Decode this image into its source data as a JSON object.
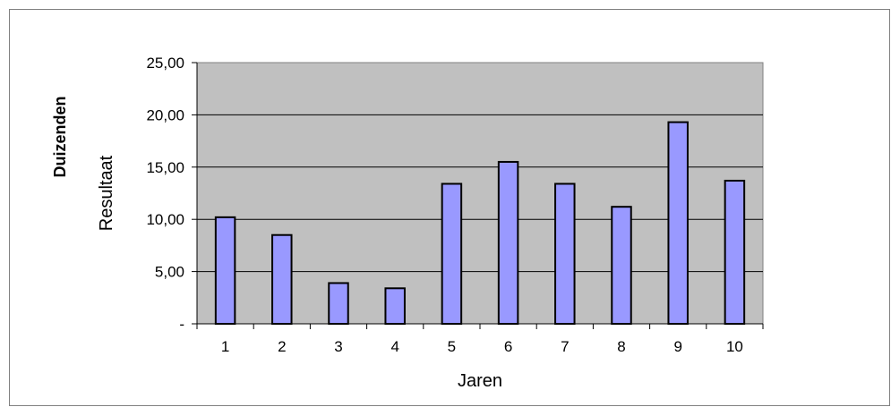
{
  "chart_data": {
    "type": "bar",
    "title": "",
    "xlabel": "Jaren",
    "ylabel": "Resultaat",
    "unit_label": "Duizenden",
    "categories": [
      "1",
      "2",
      "3",
      "4",
      "5",
      "6",
      "7",
      "8",
      "9",
      "10"
    ],
    "values": [
      10.2,
      8.5,
      3.9,
      3.4,
      13.4,
      15.5,
      13.4,
      11.2,
      19.3,
      13.7
    ],
    "ylim": [
      0,
      25
    ],
    "yticks": [
      0,
      5,
      10,
      15,
      20,
      25
    ],
    "ytick_labels": [
      "-",
      "5,00",
      "10,00",
      "15,00",
      "20,00",
      "25,00"
    ],
    "grid": true,
    "legend": "none",
    "colors": {
      "bar_fill": "#9999ff",
      "bar_stroke": "#000000",
      "plot_background": "#c0c0c0",
      "gridline": "#000000",
      "frame": "#808080"
    }
  }
}
